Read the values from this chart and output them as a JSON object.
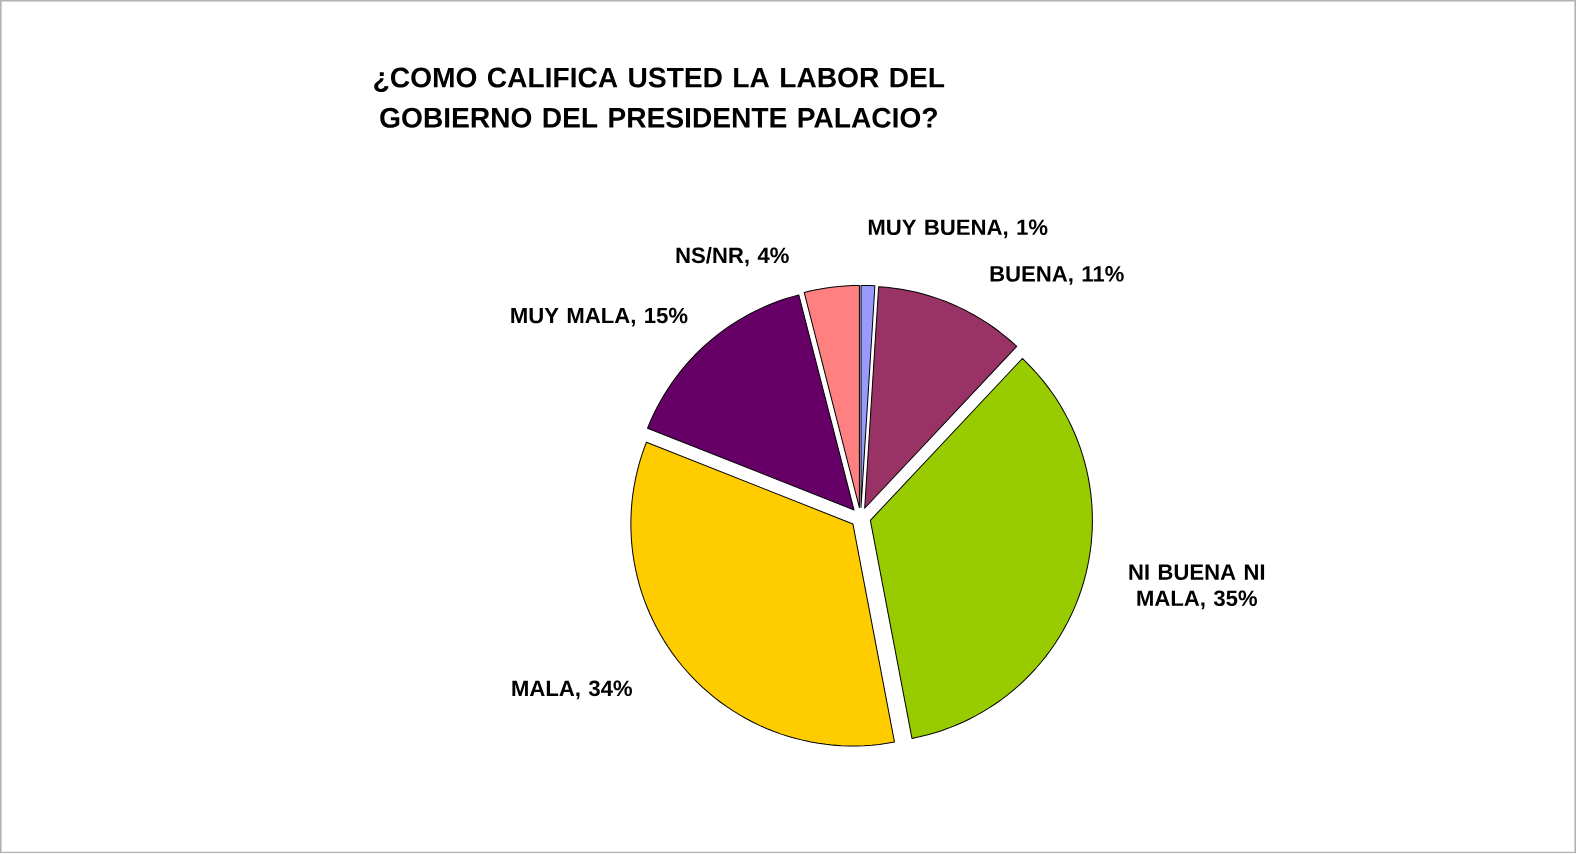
{
  "chart_data": {
    "type": "pie",
    "title": "¿COMO CALIFICA USTED LA LABOR DEL GOBIERNO DEL PRESIDENTE PALACIO?",
    "categories": [
      "MUY BUENA",
      "BUENA",
      "NI BUENA NI MALA",
      "MALA",
      "MUY MALA",
      "NS/NR"
    ],
    "values": [
      1,
      11,
      35,
      34,
      15,
      4
    ],
    "value_labels": [
      ", 1%",
      ", 11%",
      ", 35%",
      ", 34%",
      ", 15%",
      ", 4%"
    ],
    "data_labels": true,
    "colors": [
      "#9999ff",
      "#993366",
      "#99cc00",
      "#ffcc00",
      "#660066",
      "#ff8080"
    ]
  }
}
